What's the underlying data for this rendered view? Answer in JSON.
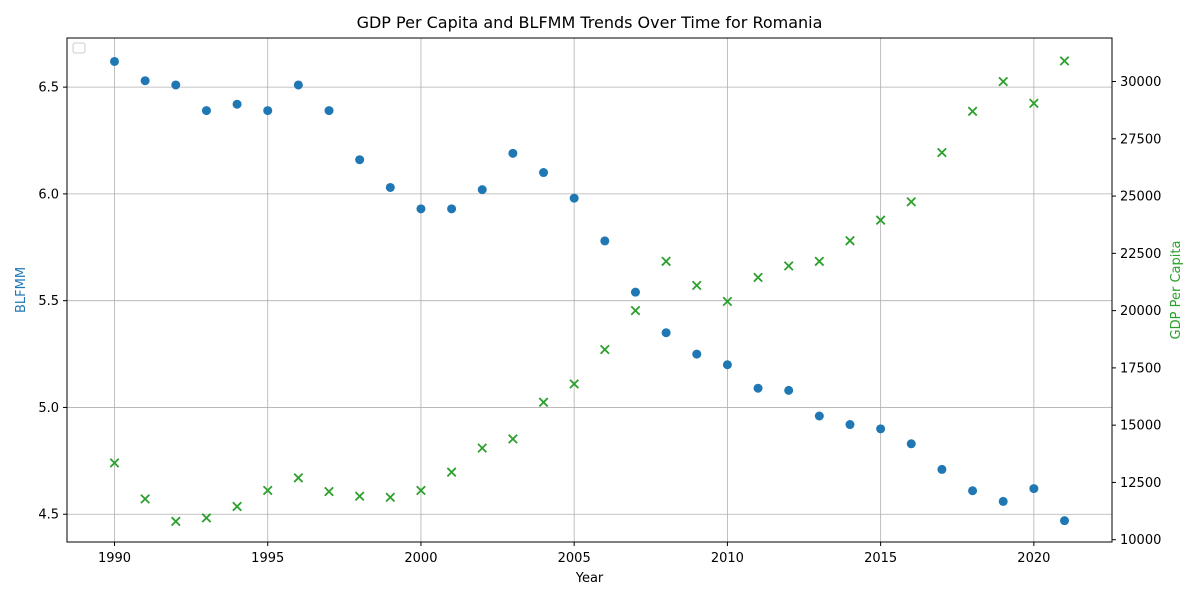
{
  "chart_data": {
    "type": "scatter",
    "title": "GDP Per Capita and BLFMM Trends Over Time for Romania",
    "xlabel": "Year",
    "ylabel_left": "BLFMM",
    "ylabel_right": "GDP Per Capita",
    "xlim": [
      1988.45,
      2022.55
    ],
    "ylim_left": [
      4.37,
      6.73
    ],
    "ylim_right": [
      9900,
      31900
    ],
    "x_ticks": [
      1990,
      1995,
      2000,
      2005,
      2010,
      2015,
      2020
    ],
    "y_ticks_left": [
      4.5,
      5.0,
      5.5,
      6.0,
      6.5
    ],
    "y_ticks_right": [
      10000,
      12500,
      15000,
      17500,
      20000,
      22500,
      25000,
      27500,
      30000
    ],
    "grid": true,
    "legend": "top-left",
    "colors": {
      "blfmm": "#1f77b4",
      "gdp": "#2ca02c"
    },
    "x": [
      1990,
      1991,
      1992,
      1993,
      1994,
      1995,
      1996,
      1997,
      1998,
      1999,
      2000,
      2001,
      2002,
      2003,
      2004,
      2005,
      2006,
      2007,
      2008,
      2009,
      2010,
      2011,
      2012,
      2013,
      2014,
      2015,
      2016,
      2017,
      2018,
      2019,
      2020,
      2021
    ],
    "series": [
      {
        "axis": "left",
        "marker": "circle",
        "values": [
          6.62,
          6.53,
          6.51,
          6.39,
          6.42,
          6.39,
          6.51,
          6.39,
          6.16,
          6.03,
          5.93,
          5.93,
          6.02,
          6.19,
          6.1,
          5.98,
          5.78,
          5.54,
          5.35,
          5.25,
          5.2,
          5.09,
          5.08,
          4.96,
          4.92,
          4.9,
          4.83,
          4.71,
          4.61,
          4.56,
          4.62,
          4.47
        ]
      },
      {
        "axis": "right",
        "marker": "x",
        "values": [
          13350,
          11780,
          10800,
          10950,
          11450,
          12150,
          12700,
          12100,
          11900,
          11850,
          12150,
          12950,
          14000,
          14400,
          16000,
          16800,
          18300,
          20000,
          22150,
          21100,
          20400,
          21450,
          21950,
          22150,
          23050,
          23950,
          24750,
          26900,
          28700,
          30000,
          29050,
          30900
        ]
      }
    ]
  }
}
